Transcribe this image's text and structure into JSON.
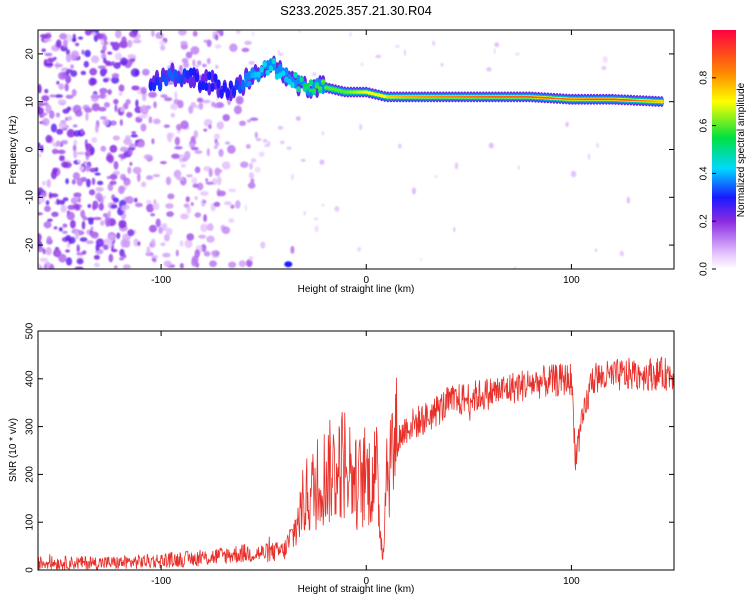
{
  "title": "S233.2025.357.21.30.R04",
  "chart_data": [
    {
      "type": "heatmap",
      "xlabel": "Height of straight line (km)",
      "ylabel": "Frequency (Hz)",
      "xlim": [
        -160,
        150
      ],
      "ylim": [
        -25,
        25
      ],
      "xticks": [
        -100,
        0,
        100
      ],
      "xtick_labels": [
        "-100",
        "0",
        "100"
      ],
      "yticks": [
        -20,
        -10,
        0,
        10,
        20
      ],
      "ytick_labels": [
        "-20",
        "-10",
        "0",
        "10",
        "20"
      ],
      "colorbar": {
        "label": "Normalized spectral amplitude",
        "range": [
          0,
          1
        ],
        "ticks": [
          0.0,
          0.2,
          0.4,
          0.6,
          0.8
        ],
        "tick_labels": [
          "0.0",
          "0.2",
          "0.4",
          "0.6",
          "0.8"
        ]
      },
      "ridge": {
        "height_km": [
          -105,
          -95,
          -85,
          -75,
          -65,
          -55,
          -45,
          -38,
          -30,
          -20,
          -10,
          0,
          10,
          20,
          40,
          60,
          80,
          100,
          120,
          145
        ],
        "frequency_hz": [
          13,
          16,
          15,
          14,
          12,
          16,
          17,
          15,
          13,
          13,
          12,
          12,
          11,
          11,
          11,
          11,
          11,
          10.5,
          10.5,
          10
        ],
        "amplitude": [
          0.3,
          0.35,
          0.3,
          0.3,
          0.3,
          0.4,
          0.45,
          0.4,
          0.55,
          0.6,
          0.6,
          0.7,
          0.75,
          0.8,
          0.85,
          0.9,
          0.9,
          0.85,
          0.95,
          0.75
        ]
      }
    },
    {
      "type": "line",
      "xlabel": "Height of straight line (km)",
      "ylabel": "SNR (10 * v/v)",
      "xlim": [
        -160,
        150
      ],
      "ylim": [
        0,
        500
      ],
      "xticks": [
        -100,
        0,
        100
      ],
      "xtick_labels": [
        "-100",
        "0",
        "100"
      ],
      "yticks": [
        0,
        100,
        200,
        300,
        400,
        500
      ],
      "ytick_labels": [
        "0",
        "100",
        "200",
        "300",
        "400",
        "500"
      ],
      "series": [
        {
          "name": "SNR",
          "color": "#e8302a",
          "x": [
            -160,
            -140,
            -120,
            -100,
            -80,
            -70,
            -60,
            -50,
            -40,
            -35,
            -30,
            -25,
            -20,
            -15,
            -10,
            -5,
            0,
            5,
            8,
            10,
            15,
            20,
            30,
            40,
            50,
            60,
            70,
            80,
            90,
            100,
            102,
            110,
            120,
            130,
            140,
            150
          ],
          "y": [
            15,
            15,
            15,
            20,
            25,
            30,
            35,
            35,
            40,
            80,
            150,
            170,
            200,
            210,
            230,
            180,
            190,
            200,
            25,
            220,
            270,
            300,
            320,
            350,
            360,
            370,
            380,
            390,
            395,
            400,
            240,
            400,
            405,
            410,
            410,
            410
          ]
        }
      ]
    }
  ]
}
